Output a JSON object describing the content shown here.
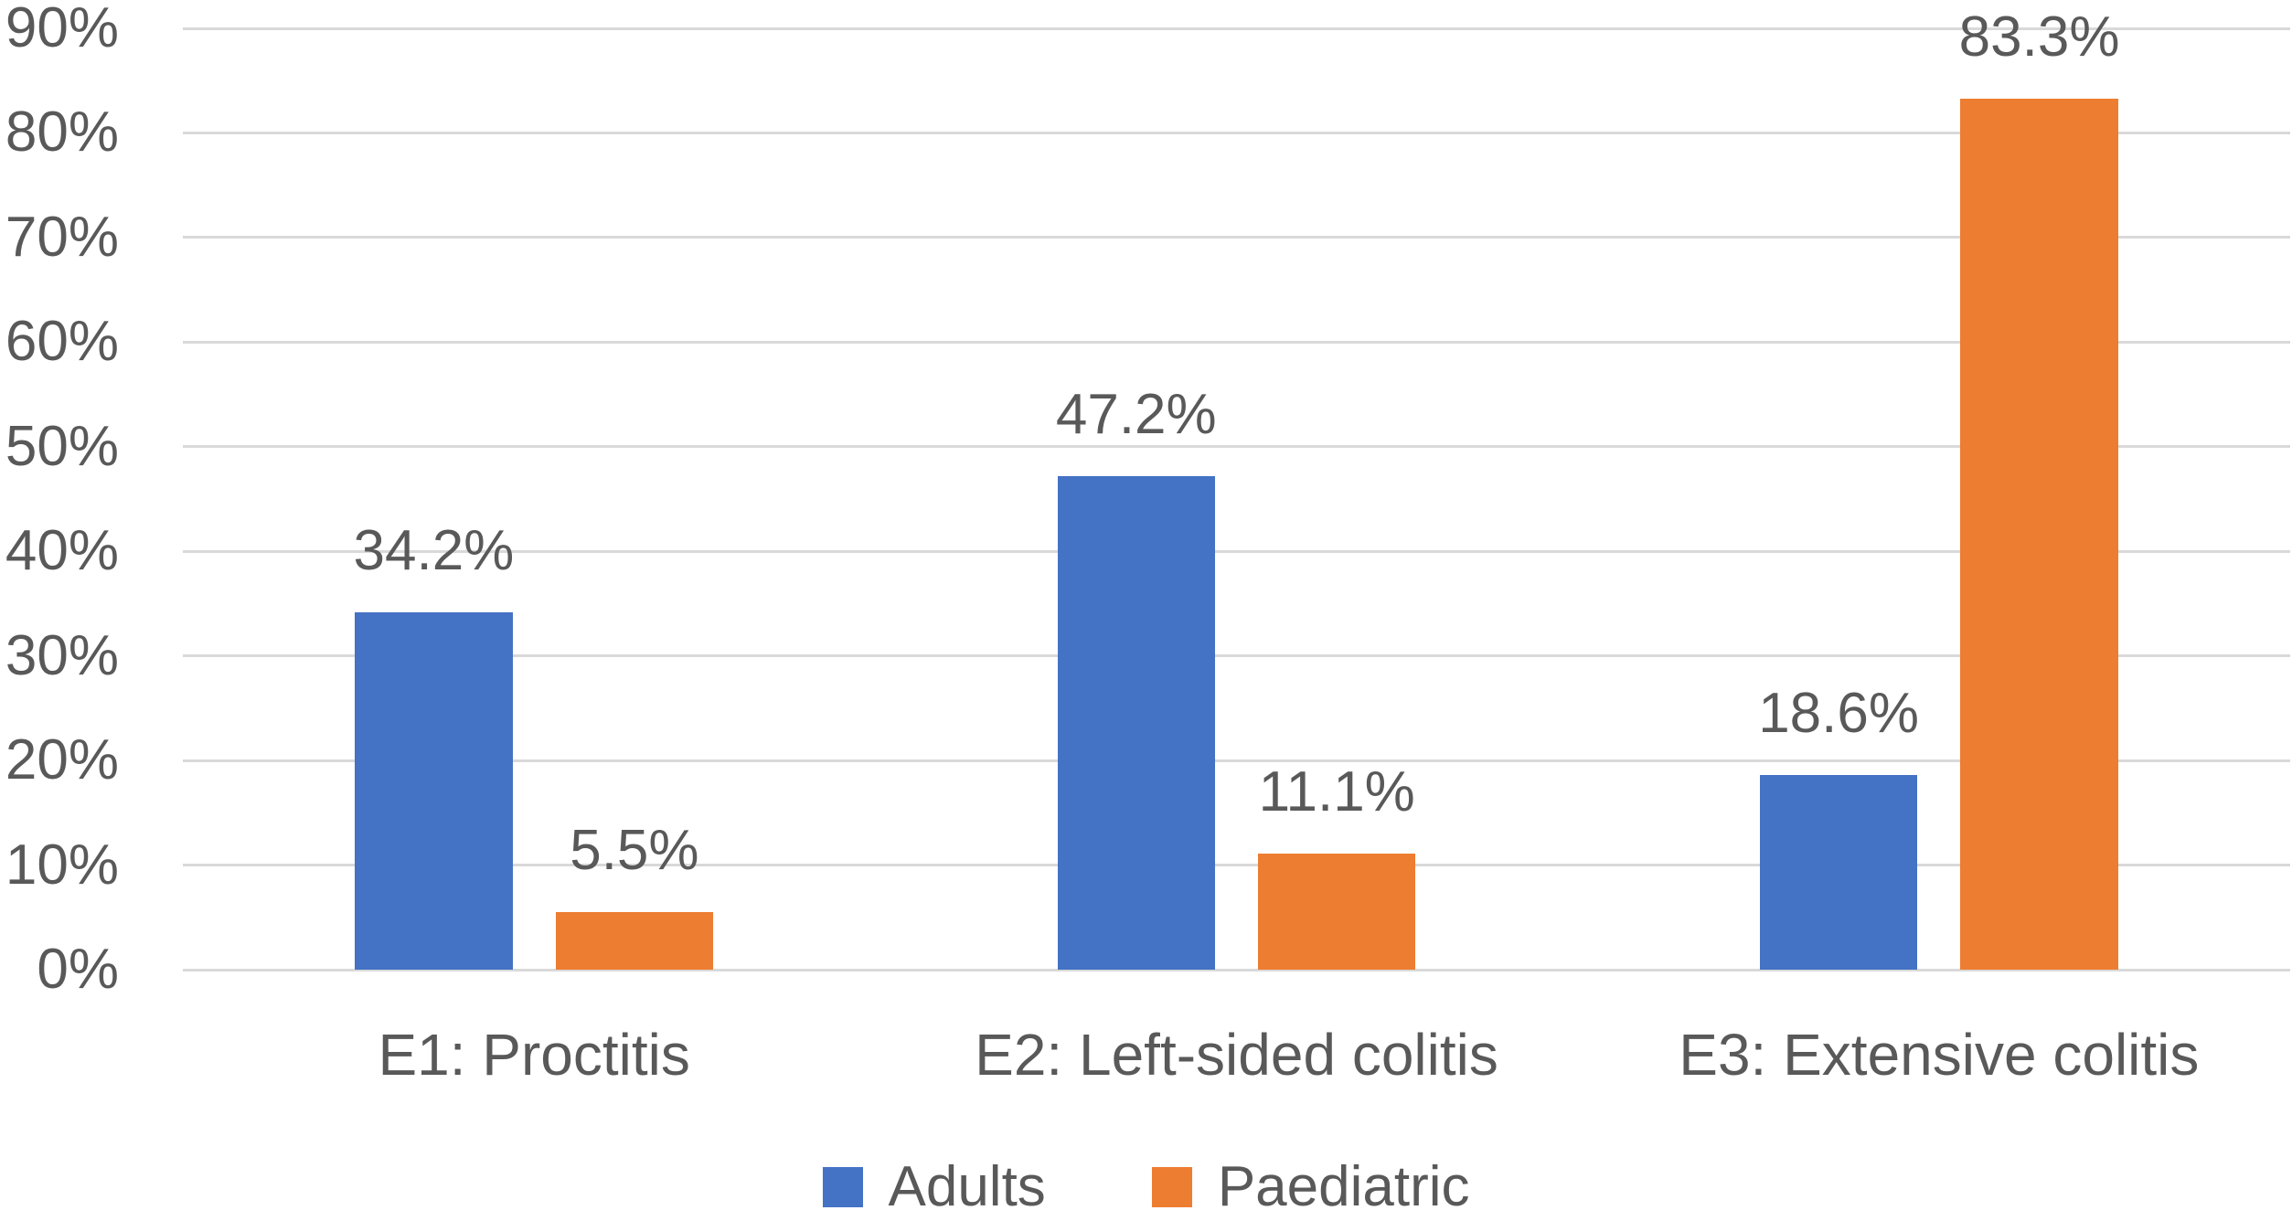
{
  "chart_data": {
    "type": "bar",
    "title": "",
    "xlabel": "",
    "ylabel": "",
    "categories": [
      "E1: Proctitis",
      "E2: Left-sided colitis",
      "E3: Extensive colitis"
    ],
    "series": [
      {
        "name": "Adults",
        "color": "#4472C4",
        "values": [
          34.2,
          47.2,
          18.6
        ],
        "labels": [
          "34.2%",
          "47.2%",
          "18.6%"
        ]
      },
      {
        "name": "Paediatric",
        "color": "#ED7D31",
        "values": [
          5.5,
          11.1,
          83.3
        ],
        "labels": [
          "5.5%",
          "11.1%",
          "83.3%"
        ]
      }
    ],
    "y_axis": {
      "min": 0,
      "max": 90,
      "tick_step": 10,
      "tick_labels": [
        "0%",
        "10%",
        "20%",
        "30%",
        "40%",
        "50%",
        "60%",
        "70%",
        "80%",
        "90%"
      ]
    },
    "grid": true,
    "legend_position": "bottom",
    "colors": {
      "text": "#595959",
      "gridline": "#D9D9D9",
      "background": "#FFFFFF"
    }
  }
}
